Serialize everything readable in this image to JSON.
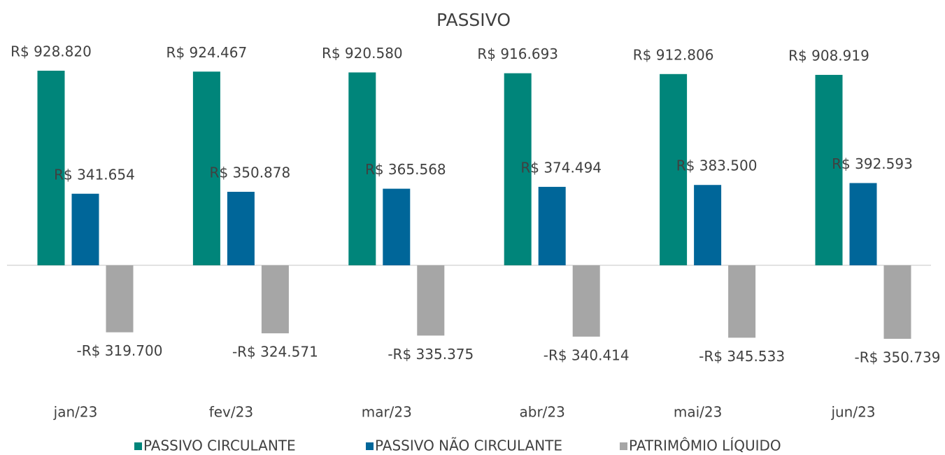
{
  "chart_data": {
    "type": "bar",
    "title": "PASSIVO",
    "categories": [
      "jan/23",
      "fev/23",
      "mar/23",
      "abr/23",
      "mai/23",
      "jun/23"
    ],
    "series": [
      {
        "name": "PASSIVO CIRCULANTE",
        "color": "#00857a",
        "values": [
          928820,
          924467,
          920580,
          916693,
          912806,
          908919
        ],
        "value_labels": [
          "R$ 928.820",
          "R$ 924.467",
          "R$ 920.580",
          "R$ 916.693",
          "R$ 912.806",
          "R$ 908.919"
        ]
      },
      {
        "name": "PASSIVO NÃO CIRCULANTE",
        "color": "#006699",
        "values": [
          341654,
          350878,
          365568,
          374494,
          383500,
          392593
        ],
        "value_labels": [
          "R$ 341.654",
          "R$ 350.878",
          "R$ 365.568",
          "R$ 374.494",
          "R$ 383.500",
          "R$ 392.593"
        ]
      },
      {
        "name": "PATRIMÔMIO LÍQUIDO",
        "color": "#a6a6a6",
        "values": [
          -319700,
          -324571,
          -335375,
          -340414,
          -345533,
          -350739
        ],
        "value_labels": [
          "-R$ 319.700",
          "-R$ 324.571",
          "-R$ 335.375",
          "-R$ 340.414",
          "-R$ 345.533",
          "-R$ 350.739"
        ]
      }
    ]
  }
}
